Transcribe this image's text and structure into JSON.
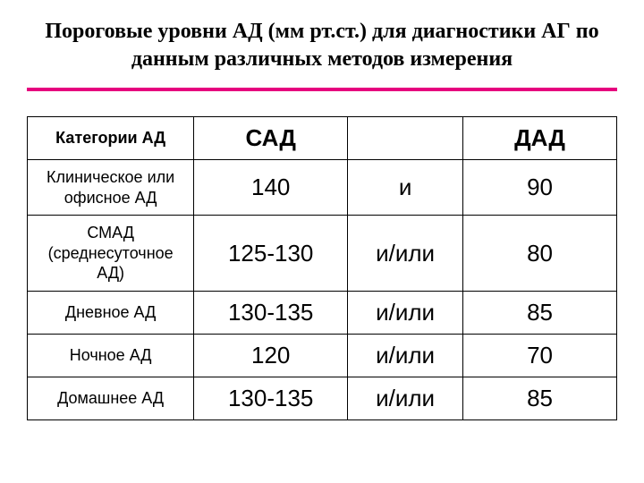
{
  "title": "Пороговые уровни АД (мм рт.ст.) для диагностики АГ по данным различных методов измерения",
  "table": {
    "columns": {
      "category": "Категории АД",
      "sad": "САД",
      "connector": "",
      "dad": "ДАД"
    },
    "column_widths_pct": [
      26,
      24,
      18,
      24
    ],
    "rows": [
      {
        "category": "Клиническое или офисное АД",
        "sad": "140",
        "connector": "и",
        "dad": "90"
      },
      {
        "category": "СМАД (среднесуточное АД)",
        "sad": "125-130",
        "connector": "и/или",
        "dad": "80"
      },
      {
        "category": "Дневное АД",
        "sad": "130-135",
        "connector": "и/или",
        "dad": "85"
      },
      {
        "category": "Ночное АД",
        "sad": "120",
        "connector": "и/или",
        "dad": "70"
      },
      {
        "category": "Домашнее АД",
        "sad": "130-135",
        "connector": "и/или",
        "dad": "85"
      }
    ],
    "border_color": "#000000",
    "divider_color": "#e6007e",
    "background_color": "#ffffff",
    "title_fontsize": 24,
    "header_fontsize": 26,
    "cell_fontsize": 26,
    "category_fontsize": 18
  }
}
